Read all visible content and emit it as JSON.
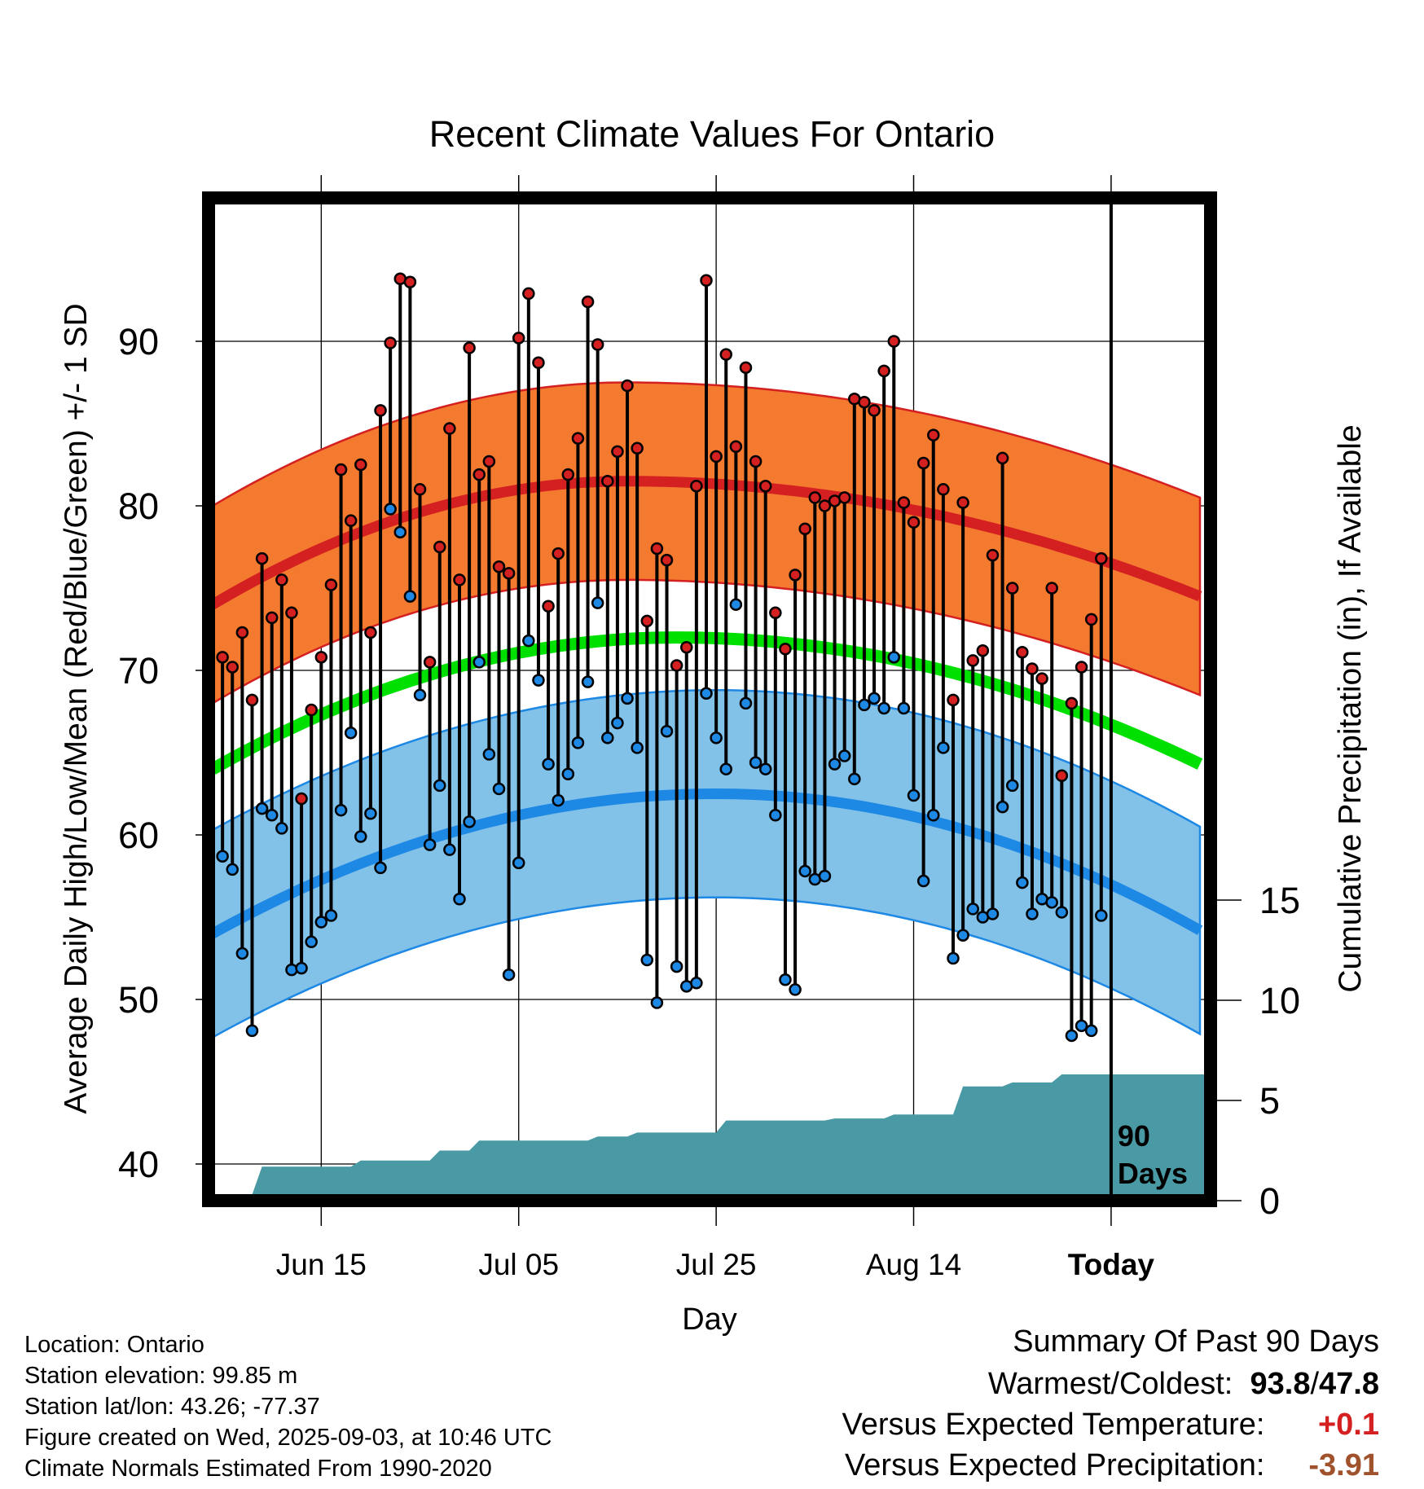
{
  "chart_data": {
    "type": "line",
    "title": "Recent Climate Values For Ontario",
    "xlabel": "Day",
    "ylabel_left": "Average Daily High/Low/Mean (Red/Blue/Green) +/- 1 SD",
    "ylabel_right": "Cumulative Precipitation (in), If Available",
    "x_tick_labels": [
      "Jun 15",
      "Jul 05",
      "Jul 25",
      "Aug 14",
      "Today"
    ],
    "x_tick_days": [
      11,
      31,
      51,
      71,
      91
    ],
    "x_range_days": [
      0,
      101
    ],
    "today_day": 91,
    "today_marker_label": "90 Days",
    "ylim_left": [
      38,
      98
    ],
    "yticks_left": [
      40,
      50,
      60,
      70,
      80,
      90
    ],
    "ylim_right": [
      0,
      30
    ],
    "yticks_right": [
      0,
      5,
      10,
      15
    ],
    "grid": true,
    "normals": {
      "high_mean": {
        "day0": 74.0,
        "peak": 81.5,
        "peak_day": 42,
        "day100": 74.5
      },
      "high_sd": 6.0,
      "low_mean": {
        "day0": 54.0,
        "peak": 62.5,
        "peak_day": 51,
        "day100": 54.2
      },
      "low_sd": 6.3,
      "mean": {
        "day0": 64.0,
        "peak": 72.0,
        "peak_day": 47,
        "day100": 64.3
      }
    },
    "series": [
      {
        "name": "High",
        "color": "#d42020",
        "x": [
          1,
          2,
          3,
          4,
          5,
          6,
          7,
          8,
          9,
          10,
          11,
          12,
          13,
          14,
          15,
          16,
          17,
          18,
          19,
          20,
          21,
          22,
          23,
          24,
          25,
          26,
          27,
          28,
          29,
          30,
          31,
          32,
          33,
          34,
          35,
          36,
          37,
          38,
          39,
          40,
          41,
          42,
          43,
          44,
          45,
          46,
          47,
          48,
          49,
          50,
          51,
          52,
          53,
          54,
          55,
          56,
          57,
          58,
          59,
          60,
          61,
          62,
          63,
          64,
          65,
          66,
          67,
          68,
          69,
          70,
          71,
          72,
          73,
          74,
          75,
          76,
          77,
          78,
          79,
          80,
          81,
          82,
          83,
          84,
          85,
          86,
          87,
          88,
          89,
          90
        ],
        "values": [
          70.8,
          70.2,
          72.3,
          68.2,
          76.8,
          73.2,
          75.5,
          73.5,
          62.2,
          67.6,
          70.8,
          75.2,
          82.2,
          79.1,
          82.5,
          72.3,
          85.8,
          89.9,
          93.8,
          93.6,
          81.0,
          70.5,
          77.5,
          84.7,
          75.5,
          89.6,
          81.9,
          82.7,
          76.3,
          75.9,
          90.2,
          92.9,
          88.7,
          73.9,
          77.1,
          81.9,
          84.1,
          92.4,
          89.8,
          81.5,
          83.3,
          87.3,
          83.5,
          73.0,
          77.4,
          76.7,
          70.3,
          71.4,
          81.2,
          93.7,
          83.0,
          89.2,
          83.6,
          88.4,
          82.7,
          81.2,
          73.5,
          71.3,
          75.8,
          78.6,
          80.5,
          80.0,
          80.3,
          80.5,
          86.5,
          86.3,
          85.8,
          88.2,
          90.0,
          80.2,
          79.0,
          82.6,
          84.3,
          81.0,
          68.2,
          80.2,
          70.6,
          71.2,
          77.0,
          82.9,
          75.0,
          71.1,
          70.1,
          69.5,
          75.0,
          63.6,
          68.0,
          70.2,
          73.1,
          76.8
        ]
      },
      {
        "name": "Low",
        "color": "#1e88e5",
        "x": [
          1,
          2,
          3,
          4,
          5,
          6,
          7,
          8,
          9,
          10,
          11,
          12,
          13,
          14,
          15,
          16,
          17,
          18,
          19,
          20,
          21,
          22,
          23,
          24,
          25,
          26,
          27,
          28,
          29,
          30,
          31,
          32,
          33,
          34,
          35,
          36,
          37,
          38,
          39,
          40,
          41,
          42,
          43,
          44,
          45,
          46,
          47,
          48,
          49,
          50,
          51,
          52,
          53,
          54,
          55,
          56,
          57,
          58,
          59,
          60,
          61,
          62,
          63,
          64,
          65,
          66,
          67,
          68,
          69,
          70,
          71,
          72,
          73,
          74,
          75,
          76,
          77,
          78,
          79,
          80,
          81,
          82,
          83,
          84,
          85,
          86,
          87,
          88,
          89,
          90
        ],
        "values": [
          58.7,
          57.9,
          52.8,
          48.1,
          61.6,
          61.2,
          60.4,
          51.8,
          51.9,
          53.5,
          54.7,
          55.1,
          61.5,
          66.2,
          59.9,
          61.3,
          58.0,
          79.8,
          78.4,
          74.5,
          68.5,
          59.4,
          63.0,
          59.1,
          56.1,
          60.8,
          70.5,
          64.9,
          62.8,
          51.5,
          58.3,
          71.8,
          69.4,
          64.3,
          62.1,
          63.7,
          65.6,
          69.3,
          74.1,
          65.9,
          66.8,
          68.3,
          65.3,
          52.4,
          49.8,
          66.3,
          52.0,
          50.8,
          51.0,
          68.6,
          65.9,
          64.0,
          74.0,
          68.0,
          64.4,
          64.0,
          61.2,
          51.2,
          50.6,
          57.8,
          57.3,
          57.5,
          64.3,
          64.8,
          63.4,
          67.9,
          68.3,
          67.7,
          70.8,
          67.7,
          62.4,
          57.2,
          61.2,
          65.3,
          52.5,
          53.9,
          55.5,
          55.0,
          55.2,
          61.7,
          63.0,
          57.1,
          55.2,
          56.1,
          55.9,
          55.3,
          47.8,
          48.4,
          48.1,
          55.1
        ]
      },
      {
        "name": "Cumulative Precipitation",
        "color": "#4a9aa5",
        "x": [
          0,
          4,
          5,
          14,
          15,
          22,
          23,
          26,
          27,
          38,
          39,
          42,
          43,
          51,
          52,
          62,
          63,
          68,
          69,
          75,
          76,
          80,
          81,
          85,
          86,
          101
        ],
        "values": [
          0.3,
          0.3,
          1.7,
          1.7,
          2.0,
          2.0,
          2.5,
          2.5,
          3.0,
          3.0,
          3.2,
          3.2,
          3.4,
          3.4,
          4.0,
          4.0,
          4.1,
          4.1,
          4.3,
          4.3,
          5.7,
          5.7,
          5.9,
          5.9,
          6.3,
          6.3
        ]
      }
    ]
  },
  "footer": {
    "location": "Location: Ontario",
    "elevation": "Station elevation: 99.85 m",
    "latlon": "Station lat/lon: 43.26; -77.37",
    "created": "Figure created on Wed, 2025-09-03, at 10:46 UTC",
    "normals": "Climate Normals Estimated From 1990-2020"
  },
  "summary": {
    "heading": "Summary Of Past 90 Days",
    "warmest_coldest_label": "Warmest/Coldest:",
    "warmest": "93.8",
    "sep": "/",
    "coldest": "47.8",
    "temp_label": "Versus Expected Temperature:",
    "temp_value": "+0.1",
    "temp_color": "#d42020",
    "precip_label": "Versus Expected Precipitation:",
    "precip_value": "-3.91",
    "precip_color": "#a0522d"
  },
  "colors": {
    "high_band": "#f47a30",
    "high_line": "#d42020",
    "low_band": "#82c1e8",
    "low_line": "#1e88e5",
    "mean_line": "#00e000",
    "precip_fill": "#4a9aa5"
  }
}
